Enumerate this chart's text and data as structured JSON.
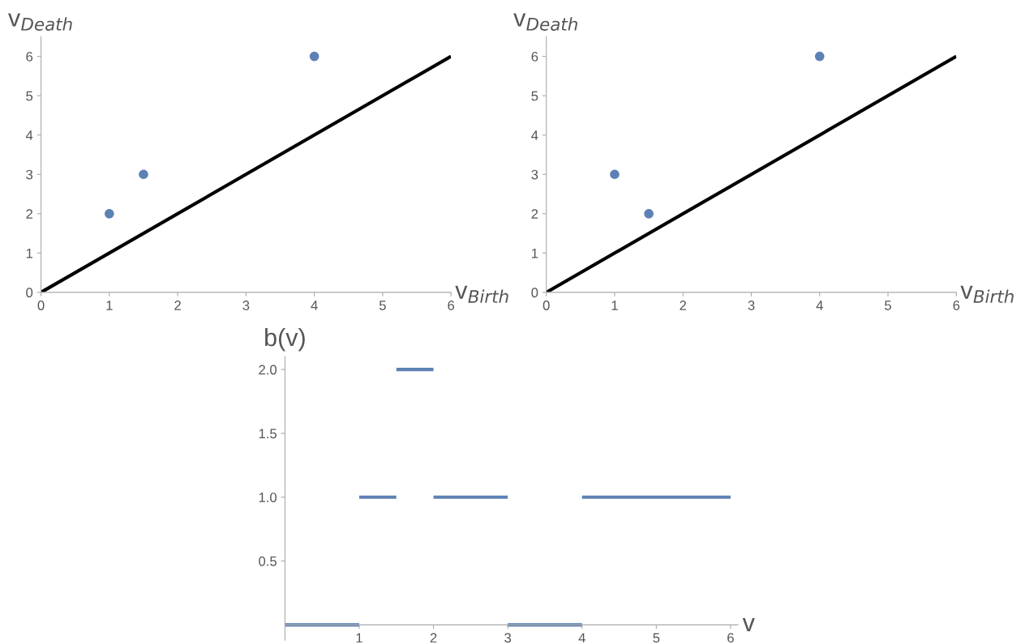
{
  "chart_data": [
    {
      "type": "scatter",
      "xlabel": "v$_{Birth}$",
      "ylabel": "v$_{Death}$",
      "xlim": [
        0,
        6
      ],
      "ylim": [
        0,
        6.5
      ],
      "xticks": [
        0,
        1,
        2,
        3,
        4,
        5,
        6
      ],
      "yticks": [
        0,
        1,
        2,
        3,
        4,
        5,
        6
      ],
      "grid": false,
      "legend": false,
      "series": [
        {
          "color": "#5e81b5",
          "marker": "circle",
          "x": [
            1,
            1.5,
            4
          ],
          "values": [
            2,
            3,
            6
          ]
        },
        {
          "type": "line",
          "color": "#000000",
          "x": [
            0,
            6
          ],
          "values": [
            0,
            6
          ]
        }
      ]
    },
    {
      "type": "scatter",
      "xlabel": "v$_{Birth}$",
      "ylabel": "v$_{Death}$",
      "xlim": [
        0,
        6
      ],
      "ylim": [
        0,
        6.5
      ],
      "xticks": [
        0,
        1,
        2,
        3,
        4,
        5,
        6
      ],
      "yticks": [
        0,
        1,
        2,
        3,
        4,
        5,
        6
      ],
      "grid": false,
      "legend": false,
      "series": [
        {
          "color": "#5e81b5",
          "marker": "circle",
          "x": [
            1,
            1.5,
            4
          ],
          "values": [
            3,
            2,
            6
          ]
        },
        {
          "type": "line",
          "color": "#000000",
          "x": [
            0,
            6
          ],
          "values": [
            0,
            6
          ]
        }
      ]
    },
    {
      "type": "line",
      "xlabel": "v",
      "ylabel": "b(v)",
      "xlim": [
        0,
        6.1
      ],
      "ylim": [
        -0.12,
        2.1
      ],
      "xticks": [
        1,
        2,
        3,
        4,
        5,
        6
      ],
      "yticks": [
        {
          "value": 0.5,
          "label": "0.5"
        },
        {
          "value": 1,
          "label": "1.0"
        },
        {
          "value": 1.5,
          "label": "1.5"
        },
        {
          "value": 2,
          "label": "2.0"
        }
      ],
      "grid": false,
      "legend": false,
      "series": [
        {
          "color": "#5e81b5",
          "x": [
            0,
            1
          ],
          "values": [
            0,
            0
          ]
        },
        {
          "color": "#5e81b5",
          "x": [
            1,
            1.5
          ],
          "values": [
            1,
            1
          ]
        },
        {
          "color": "#5e81b5",
          "x": [
            1.5,
            2
          ],
          "values": [
            2,
            2
          ]
        },
        {
          "color": "#5e81b5",
          "x": [
            2,
            3
          ],
          "values": [
            1,
            1
          ]
        },
        {
          "color": "#5e81b5",
          "x": [
            3,
            4
          ],
          "values": [
            0,
            0
          ]
        },
        {
          "color": "#5e81b5",
          "x": [
            4,
            6
          ],
          "values": [
            1,
            1
          ]
        }
      ]
    }
  ]
}
